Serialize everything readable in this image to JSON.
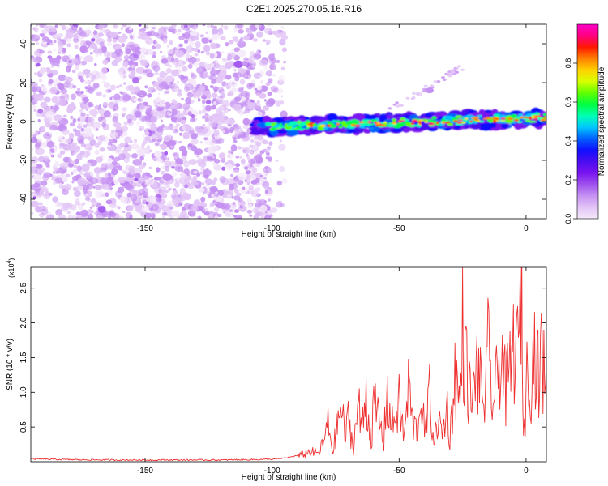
{
  "title": "C2E1.2025.270.05.16.R16",
  "chart_data": [
    {
      "type": "heatmap",
      "xlabel": "Height of straight line (km)",
      "ylabel": "Frequency (Hz)",
      "xlim": [
        -195,
        8
      ],
      "ylim": [
        -50,
        50
      ],
      "xticks": [
        -150,
        -100,
        -50,
        0
      ],
      "yticks": [
        -40,
        -20,
        0,
        20,
        40
      ],
      "colorbar": {
        "label": "Normalized spectral amplitude",
        "range": [
          0.0,
          1.0
        ],
        "ticks": [
          0.0,
          0.2,
          0.4,
          0.6,
          0.8
        ],
        "tick_labels": [
          "0.0",
          "0.2",
          "0.4",
          "0.6",
          "0.8"
        ],
        "colormap": [
          "#f4e8fa",
          "#e2c4f6",
          "#c591f2",
          "#9f52ee",
          "#7a14f0",
          "#4a0df0",
          "#1010ff",
          "#0060ff",
          "#00c8ff",
          "#00ffb4",
          "#00ff40",
          "#60ff00",
          "#d8ff00",
          "#ffd000",
          "#ff8000",
          "#ff1a00",
          "#ff0080",
          "#ff00c8"
        ]
      },
      "features": [
        {
          "description": "diffuse low-amplitude noise",
          "x_range": [
            -195,
            -95
          ],
          "y_range": [
            -50,
            50
          ],
          "amplitude": 0.08
        },
        {
          "description": "narrow signal band",
          "x_range": [
            -107,
            8
          ],
          "y_center_start": -3,
          "y_center_end": 2,
          "amplitude_peak": 0.95
        },
        {
          "description": "isolated blob",
          "x": -38,
          "y": 16,
          "amplitude": 0.1
        },
        {
          "description": "faint diagonal streak",
          "x_range": [
            -55,
            -25
          ],
          "y_range": [
            5,
            28
          ],
          "amplitude": 0.08
        }
      ]
    },
    {
      "type": "line",
      "xlabel": "Height of straight line (km)",
      "ylabel": "SNR (10 * v/v)",
      "y_scale_label": "(x10",
      "y_scale_exponent": "4",
      "xlim": [
        -195,
        8
      ],
      "ylim": [
        0,
        28000
      ],
      "xticks": [
        -150,
        -100,
        -50,
        0
      ],
      "yticks": [
        5000,
        10000,
        15000,
        20000,
        25000
      ],
      "ytick_labels": [
        "0.5",
        "1.0",
        "1.5",
        "2.0",
        "2.5"
      ],
      "series": [
        {
          "name": "SNR",
          "color": "#ee3030",
          "x": [
            -195,
            -180,
            -160,
            -140,
            -120,
            -110,
            -100,
            -95,
            -90,
            -85,
            -82,
            -80,
            -78,
            -76,
            -75,
            -73,
            -71,
            -70,
            -68,
            -66,
            -65,
            -63,
            -61,
            -60,
            -58,
            -56,
            -55,
            -53,
            -51,
            -50,
            -48,
            -46,
            -45,
            -43,
            -41,
            -40,
            -38,
            -36,
            -35,
            -33,
            -31,
            -30,
            -28,
            -26,
            -25,
            -23,
            -21,
            -20,
            -18,
            -16,
            -15,
            -13,
            -11,
            -10,
            -8,
            -6,
            -5,
            -4,
            -3,
            -2,
            -1.5,
            -1,
            0,
            1,
            2,
            3,
            4,
            5,
            6,
            7,
            8
          ],
          "y": [
            300,
            200,
            150,
            150,
            150,
            200,
            250,
            400,
            800,
            1500,
            1200,
            2500,
            5500,
            1500,
            4000,
            8000,
            3500,
            6500,
            2000,
            9000,
            4500,
            10000,
            3000,
            8000,
            6500,
            2500,
            11000,
            5000,
            7500,
            8500,
            3500,
            12000,
            6000,
            4500,
            10000,
            3500,
            9500,
            2500,
            6500,
            4000,
            8000,
            3000,
            13500,
            8000,
            19500,
            12000,
            7500,
            15000,
            11000,
            9000,
            16000,
            8500,
            12500,
            18000,
            10000,
            14000,
            16500,
            19500,
            13500,
            28000,
            21000,
            3500,
            10000,
            17000,
            12000,
            15500,
            17500,
            10500,
            16500,
            13000,
            15000
          ]
        }
      ]
    }
  ]
}
